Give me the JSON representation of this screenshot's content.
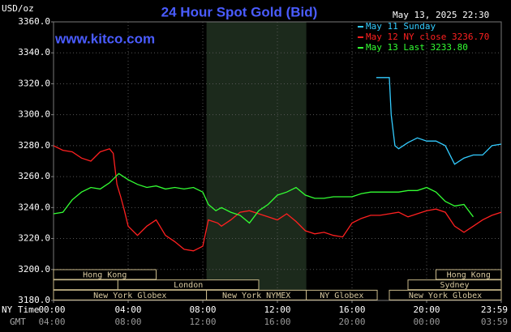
{
  "chart_data": {
    "type": "line",
    "title": "24 Hour Spot Gold (Bid)",
    "y_label": "USD/oz",
    "watermark": "www.kitco.com",
    "timestamp": "May 13, 2025 22:30",
    "x_label": "NY Time",
    "x2_label": "GMT",
    "xlim": [
      0,
      24
    ],
    "ylim": [
      3180,
      3360
    ],
    "xticks": [
      {
        "value": 0,
        "label": "00:00"
      },
      {
        "value": 4,
        "label": "04:00"
      },
      {
        "value": 8,
        "label": "08:00"
      },
      {
        "value": 12,
        "label": "12:00"
      },
      {
        "value": 16,
        "label": "16:00"
      },
      {
        "value": 20,
        "label": "20:00"
      },
      {
        "value": 24,
        "label": "23:59"
      }
    ],
    "x2ticks": [
      "04:00",
      "08:00",
      "12:00",
      "16:00",
      "20:00",
      "00:00",
      "03:59"
    ],
    "yticks": [
      {
        "value": 3180,
        "label": "3180.0"
      },
      {
        "value": 3200,
        "label": "3200.0"
      },
      {
        "value": 3220,
        "label": "3220.0"
      },
      {
        "value": 3240,
        "label": "3240.0"
      },
      {
        "value": 3260,
        "label": "3260.0"
      },
      {
        "value": 3280,
        "label": "3280.0"
      },
      {
        "value": 3300,
        "label": "3300.0"
      },
      {
        "value": 3320,
        "label": "3320.0"
      },
      {
        "value": 3340,
        "label": "3340.0"
      },
      {
        "value": 3360,
        "label": "3360.0"
      }
    ],
    "grid": true,
    "highlight": [
      8.2,
      13.55
    ],
    "session_rows": [
      [
        {
          "label": "Hong Kong",
          "start": 0,
          "end": 5.5
        },
        {
          "label": "Hong Kong",
          "start": 20.5,
          "end": 24
        }
      ],
      [
        {
          "start": 0,
          "end": 3.45
        },
        {
          "label": "London",
          "start": 3.45,
          "end": 11
        },
        {
          "label": "Sydney",
          "start": 19,
          "end": 24
        }
      ],
      [
        {
          "label": "New York Globex",
          "start": 0,
          "end": 8.2
        },
        {
          "label": "New York NYMEX",
          "start": 8.2,
          "end": 13.55
        },
        {
          "label": "NY Globex",
          "start": 13.55,
          "end": 17.35
        },
        {
          "label": "New York Globex",
          "start": 18,
          "end": 24
        }
      ]
    ],
    "series": [
      {
        "name": "May 11 Sunday",
        "color": "#33ccff",
        "x": [
          17.3,
          18,
          18.1,
          18.2,
          18.3,
          18.5,
          19,
          19.5,
          20,
          20.5,
          21,
          21.5,
          22,
          22.5,
          23,
          23.5,
          24
        ],
        "values": [
          3324,
          3324,
          3300,
          3290,
          3280,
          3278,
          3282,
          3285,
          3283,
          3283,
          3280,
          3268,
          3272,
          3274,
          3274,
          3280,
          3281
        ]
      },
      {
        "name": "May 12 NY close 3236.70",
        "color": "#ff2020",
        "x": [
          0,
          0.5,
          1,
          1.5,
          2,
          2.5,
          3,
          3.2,
          3.4,
          3.6,
          3.8,
          4,
          4.5,
          5,
          5.5,
          6,
          6.5,
          7,
          7.5,
          8,
          8.3,
          8.8,
          9,
          9.5,
          10,
          10.5,
          11,
          11.5,
          12,
          12.5,
          13,
          13.5,
          14,
          14.5,
          15,
          15.5,
          16,
          16.5,
          17,
          17.5,
          18,
          18.5,
          19,
          19.5,
          20,
          20.5,
          21,
          21.5,
          22,
          22.5,
          23,
          23.5,
          24
        ],
        "values": [
          3280,
          3277,
          3276,
          3272,
          3270,
          3276,
          3278,
          3275,
          3255,
          3247,
          3238,
          3228,
          3222,
          3228,
          3232,
          3222,
          3218,
          3213,
          3212,
          3215,
          3232,
          3230,
          3228,
          3232,
          3237,
          3238,
          3236,
          3234,
          3232,
          3236,
          3231,
          3225,
          3223,
          3224,
          3222,
          3221,
          3230,
          3233,
          3235,
          3235,
          3236,
          3237,
          3234,
          3236,
          3238,
          3239,
          3237,
          3228,
          3224,
          3228,
          3232,
          3235,
          3237
        ]
      },
      {
        "name": "May 13 Last 3233.80",
        "color": "#33ff33",
        "x": [
          0,
          0.5,
          1,
          1.5,
          2,
          2.5,
          3,
          3.5,
          4,
          4.5,
          5,
          5.5,
          6,
          6.5,
          7,
          7.5,
          8,
          8.3,
          8.7,
          9,
          9.5,
          10,
          10.5,
          11,
          11.5,
          12,
          12.5,
          13,
          13.5,
          14,
          14.5,
          15,
          15.5,
          16,
          16.5,
          17,
          17.5,
          18,
          18.5,
          19,
          19.5,
          20,
          20.5,
          21,
          21.5,
          22,
          22.5
        ],
        "values": [
          3236,
          3237,
          3245,
          3250,
          3253,
          3252,
          3256,
          3262,
          3258,
          3255,
          3253,
          3254,
          3252,
          3253,
          3252,
          3253,
          3250,
          3242,
          3238,
          3240,
          3237,
          3235,
          3230,
          3238,
          3242,
          3248,
          3250,
          3253,
          3248,
          3246,
          3246,
          3247,
          3247,
          3247,
          3249,
          3250,
          3250,
          3250,
          3250,
          3251,
          3251,
          3253,
          3250,
          3244,
          3241,
          3242,
          3234
        ]
      }
    ]
  }
}
